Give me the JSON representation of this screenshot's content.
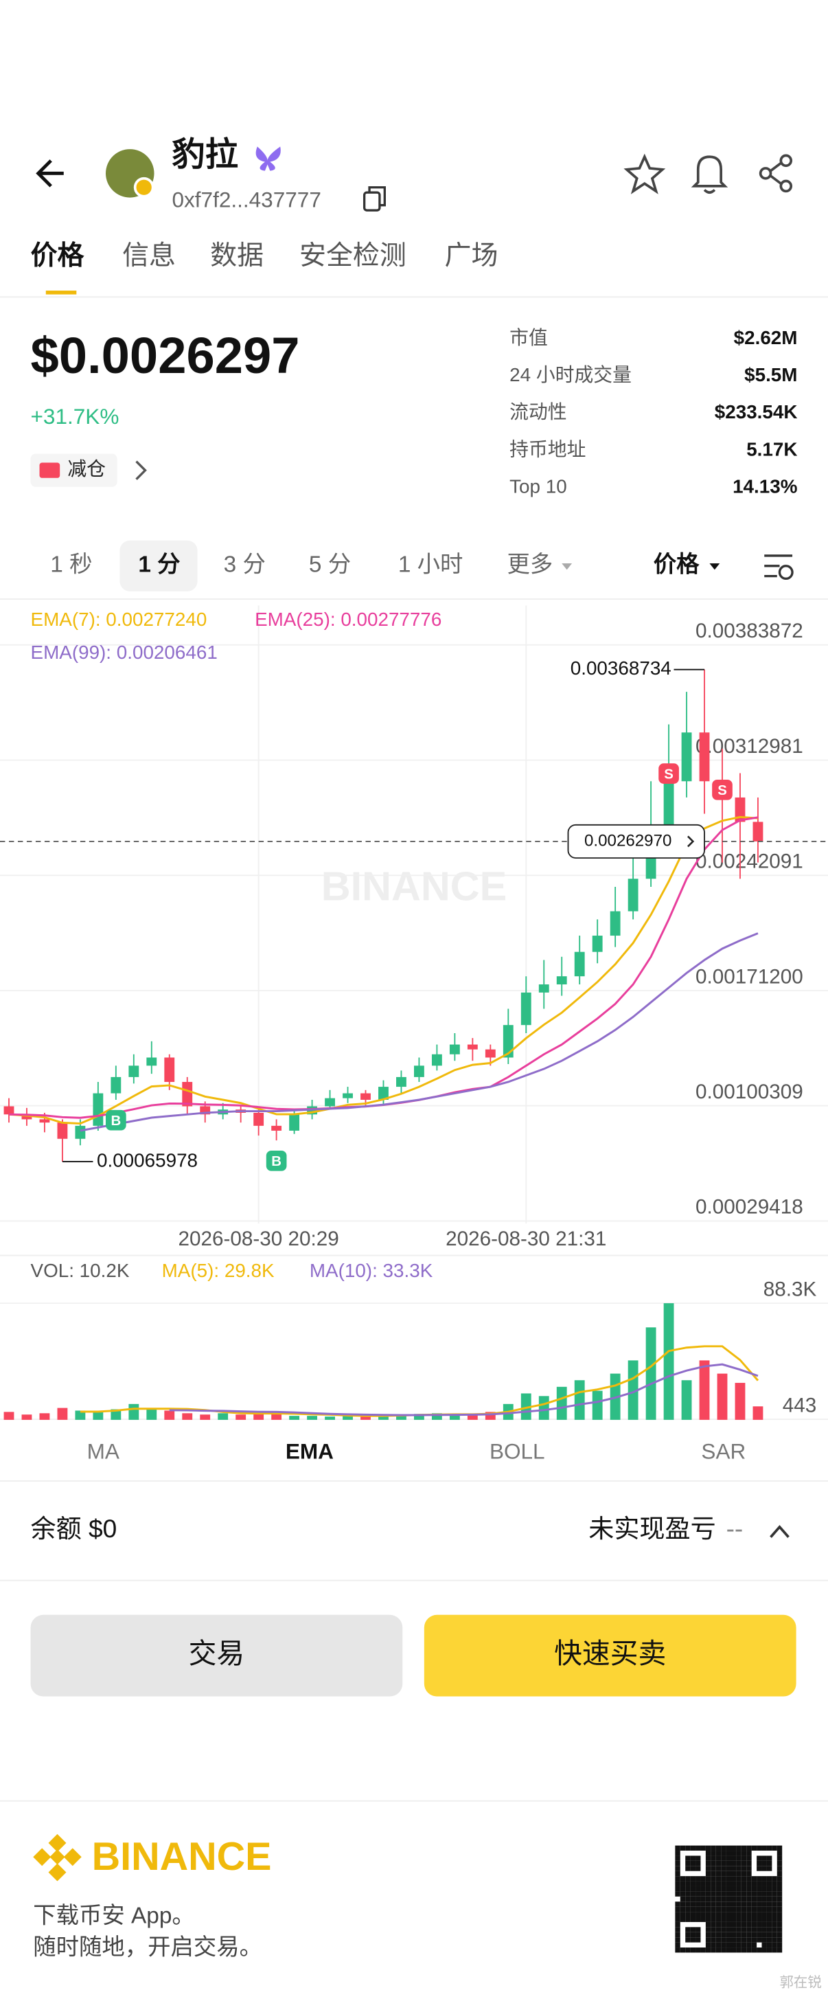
{
  "header": {
    "title": "豹拉",
    "address": "0xf7f2...437777"
  },
  "tabs": [
    "价格",
    "信息",
    "数据",
    "安全检测",
    "广场"
  ],
  "price": {
    "value": "$0.0026297",
    "change": "+31.7K%",
    "tag": "减仓"
  },
  "stats": [
    [
      "市值",
      "$2.62M"
    ],
    [
      "24 小时成交量",
      "$5.5M"
    ],
    [
      "流动性",
      "$233.54K"
    ],
    [
      "持币地址",
      "5.17K"
    ],
    [
      "Top 10",
      "14.13%"
    ]
  ],
  "intervals": [
    "1 秒",
    "1 分",
    "3 分",
    "5 分",
    "1 小时",
    "更多"
  ],
  "price_selector": "价格",
  "chart_data": [
    {
      "type": "candlestick",
      "watermark": "BINANCE",
      "categories": [
        null,
        null,
        null,
        null,
        null,
        null,
        null,
        null,
        null,
        null,
        null,
        null,
        null,
        null,
        "2026-08-30 20:29",
        null,
        null,
        null,
        null,
        null,
        null,
        null,
        null,
        null,
        null,
        null,
        null,
        null,
        null,
        "2026-08-30 21:31",
        null,
        null,
        null,
        null,
        null,
        null,
        null,
        null,
        null,
        null,
        null,
        null,
        null
      ],
      "open": [
        0.001,
        0.00095,
        0.00092,
        0.0009,
        0.0008,
        0.00088,
        0.00108,
        0.00118,
        0.00125,
        0.0013,
        0.00115,
        0.001,
        0.00095,
        0.00098,
        0.00096,
        0.00088,
        0.00085,
        0.00095,
        0.001,
        0.00105,
        0.00108,
        0.00104,
        0.00112,
        0.00118,
        0.00125,
        0.00132,
        0.00138,
        0.00135,
        0.0013,
        0.0015,
        0.0017,
        0.00175,
        0.0018,
        0.00195,
        0.00205,
        0.0022,
        0.0024,
        0.0027,
        0.003,
        0.0033,
        0.003,
        0.0029,
        0.00275
      ],
      "high": [
        0.00105,
        0.00099,
        0.00096,
        0.00092,
        0.00092,
        0.00115,
        0.00125,
        0.00132,
        0.0014,
        0.00132,
        0.00118,
        0.00103,
        0.00102,
        0.001,
        0.00098,
        0.00092,
        0.00098,
        0.00104,
        0.0011,
        0.00112,
        0.0011,
        0.00116,
        0.00122,
        0.0013,
        0.00138,
        0.00145,
        0.00142,
        0.00138,
        0.0016,
        0.0018,
        0.0019,
        0.00192,
        0.00205,
        0.00215,
        0.00235,
        0.0026,
        0.003,
        0.00335,
        0.00355,
        0.00368734,
        0.0032,
        0.00305,
        0.0029
      ],
      "low": [
        0.0009,
        0.00088,
        0.00084,
        0.00065978,
        0.00076,
        0.00085,
        0.00104,
        0.00114,
        0.0012,
        0.0011,
        0.00095,
        0.0009,
        0.00092,
        0.0009,
        0.00082,
        0.00079,
        0.00083,
        0.00092,
        0.00098,
        0.00102,
        0.001,
        0.00101,
        0.00108,
        0.00115,
        0.00122,
        0.00128,
        0.00128,
        0.00125,
        0.00126,
        0.00145,
        0.0016,
        0.00168,
        0.00175,
        0.00188,
        0.00198,
        0.00215,
        0.00235,
        0.00262,
        0.0029,
        0.0028,
        0.0025,
        0.0024,
        0.0025
      ],
      "close": [
        0.00095,
        0.00092,
        0.0009,
        0.0008,
        0.00088,
        0.00108,
        0.00118,
        0.00125,
        0.0013,
        0.00115,
        0.001,
        0.00095,
        0.00098,
        0.00096,
        0.00088,
        0.00085,
        0.00095,
        0.001,
        0.00105,
        0.00108,
        0.00104,
        0.00112,
        0.00118,
        0.00125,
        0.00132,
        0.00138,
        0.00135,
        0.0013,
        0.0015,
        0.0017,
        0.00175,
        0.0018,
        0.00195,
        0.00205,
        0.0022,
        0.0024,
        0.0027,
        0.003,
        0.0033,
        0.003,
        0.0029,
        0.00275,
        0.0026297
      ],
      "up_color": "#2ebd85",
      "down_color": "#f6465d",
      "series": [
        {
          "name": "EMA(7): 0.00277240",
          "color": "#f0b90b",
          "values": [
            0.00095,
            0.0009425,
            0.000932,
            0.000899,
            0.000894,
            0.000941,
            0.001001,
            0.001063,
            0.001122,
            0.001129,
            0.001097,
            0.00106,
            0.00104,
            0.00102,
            0.000985,
            0.000951,
            0.000951,
            0.000963,
            0.000985,
            0.001009,
            0.001017,
            0.001043,
            0.001077,
            0.00112,
            0.00117,
            0.001223,
            0.001255,
            0.001266,
            0.001325,
            0.001419,
            0.001502,
            0.001576,
            0.00167,
            0.001765,
            0.001874,
            0.002005,
            0.002179,
            0.002384,
            0.002613,
            0.00271,
            0.002757,
            0.00278,
            0.0027724
          ]
        },
        {
          "name": "EMA(25): 0.00277776",
          "color": "#e83e9c",
          "values": [
            0.00095,
            0.000948,
            0.000944,
            0.000933,
            0.000929,
            0.000941,
            0.00096,
            0.000982,
            0.001006,
            0.001017,
            0.001016,
            0.001011,
            0.001009,
            0.001005,
            0.000995,
            0.000984,
            0.000981,
            0.000983,
            0.000988,
            0.000995,
            0.000999,
            0.001008,
            0.001022,
            0.001039,
            0.001061,
            0.001086,
            0.001106,
            0.00112,
            0.00118,
            0.00125,
            0.00132,
            0.00138,
            0.00146,
            0.00154,
            0.00163,
            0.00175,
            0.00192,
            0.00215,
            0.0024,
            0.00258,
            0.0027,
            0.00276,
            0.00277776
          ]
        },
        {
          "name": "EMA(99): 0.00206461",
          "color": "#8e6cc9",
          "values": [
            null,
            null,
            null,
            null,
            0.00085,
            0.00087,
            0.00089,
            0.00091,
            0.00093,
            0.00094,
            0.00095,
            0.00096,
            0.000965,
            0.00097,
            0.00097,
            0.00097,
            0.000975,
            0.00098,
            0.000985,
            0.00099,
            0.001,
            0.00101,
            0.001025,
            0.00104,
            0.00106,
            0.00108,
            0.0011,
            0.00112,
            0.00115,
            0.00119,
            0.00123,
            0.00128,
            0.00134,
            0.0014,
            0.00147,
            0.00155,
            0.00164,
            0.00173,
            0.00182,
            0.0019,
            0.00197,
            0.00202,
            0.00206461
          ]
        }
      ],
      "ylim": [
        0.00029418,
        0.00383872
      ],
      "yticks": [
        0.00029418,
        0.00100309,
        {
          "value": 0.001712,
          "label": "0.00171200"
        },
        0.00242091,
        0.00312981,
        0.00383872
      ],
      "grid": true,
      "last_price_label": "0.00262970",
      "trades": [
        {
          "label": "B",
          "index": 6
        },
        {
          "label": "B",
          "index": 15
        },
        {
          "label": "S",
          "index": 37
        },
        {
          "label": "S",
          "index": 40
        }
      ]
    },
    {
      "type": "bar",
      "series": [
        {
          "name": "VOL: 10.2K",
          "values": [
            6000,
            4000,
            5000,
            9000,
            7000,
            6000,
            8000,
            12000,
            9000,
            7000,
            5000,
            4000,
            5000,
            4000,
            6000,
            5000,
            3000,
            3000,
            2500,
            3000,
            3500,
            3000,
            4000,
            4500,
            5000,
            4000,
            3500,
            6000,
            12000,
            20000,
            18000,
            25000,
            30000,
            22000,
            35000,
            45000,
            70000,
            88300,
            30000,
            45000,
            35000,
            28000,
            10200
          ]
        },
        {
          "name": "MA(5): 29.8K",
          "color": "#f0b90b",
          "values": [
            null,
            null,
            null,
            null,
            6200,
            6200,
            7000,
            8400,
            8400,
            8400,
            8200,
            7400,
            6000,
            5000,
            4800,
            4800,
            4600,
            4200,
            3900,
            3300,
            3000,
            3000,
            3300,
            3700,
            4000,
            4200,
            4200,
            4600,
            6100,
            9100,
            11900,
            16200,
            21000,
            23000,
            26000,
            31400,
            40400,
            52100,
            54700,
            55700,
            55700,
            45300,
            29800
          ]
        },
        {
          "name": "MA(10): 33.3K",
          "color": "#8e6cc9",
          "values": [
            null,
            null,
            null,
            null,
            null,
            null,
            null,
            null,
            null,
            7300,
            7200,
            6900,
            6800,
            6400,
            6100,
            6000,
            5600,
            5000,
            4500,
            4200,
            3900,
            3700,
            3600,
            3600,
            3700,
            3800,
            3900,
            4200,
            5000,
            6200,
            7400,
            9200,
            11700,
            13600,
            16800,
            20900,
            27200,
            33000,
            37300,
            40500,
            42000,
            38000,
            33300
          ]
        }
      ],
      "ylim": [
        0,
        110000
      ],
      "yticks": [
        443,
        {
          "value": 88300,
          "label": "88.3K"
        }
      ]
    }
  ],
  "indicators": [
    "MA",
    "EMA",
    "BOLL",
    "SAR"
  ],
  "balance": "余额 $0",
  "pnl_label": "未实现盈亏",
  "pnl_value": "--",
  "buttons": [
    "交易",
    "快速买卖"
  ],
  "footer": {
    "brand": "BINANCE",
    "line1": "下载币安 App。",
    "line2": "随时随地，开启交易。"
  },
  "credit": "郭在锐"
}
